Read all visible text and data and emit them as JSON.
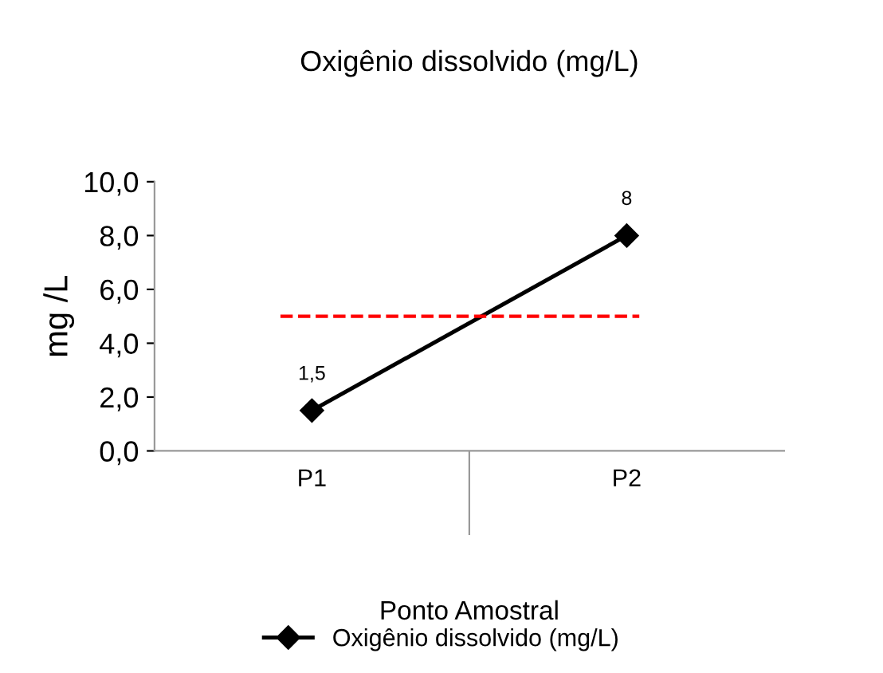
{
  "chart_data": {
    "type": "line",
    "title": "Oxigênio dissolvido (mg/L)",
    "xlabel": "Ponto Amostral",
    "ylabel": "mg /L",
    "categories": [
      "P1",
      "P2"
    ],
    "series": [
      {
        "name": "Oxigênio dissolvido (mg/L)",
        "color": "#000000",
        "values": [
          1.5,
          8
        ],
        "value_labels": [
          "1,5",
          "8"
        ]
      }
    ],
    "marker": "diamond",
    "line_style": "solid",
    "ylim": [
      0,
      10
    ],
    "yticks": [
      {
        "value": 0,
        "label": "0,0"
      },
      {
        "value": 2,
        "label": "2,0"
      },
      {
        "value": 4,
        "label": "4,0"
      },
      {
        "value": 6,
        "label": "6,0"
      },
      {
        "value": 8,
        "label": "8,0"
      },
      {
        "value": 10,
        "label": "10,0"
      }
    ],
    "ref_lines": [
      {
        "axis": "y",
        "value": 5,
        "color": "#ff0000",
        "line_style": "dashed"
      }
    ],
    "grid": false,
    "legend": "bottom"
  }
}
